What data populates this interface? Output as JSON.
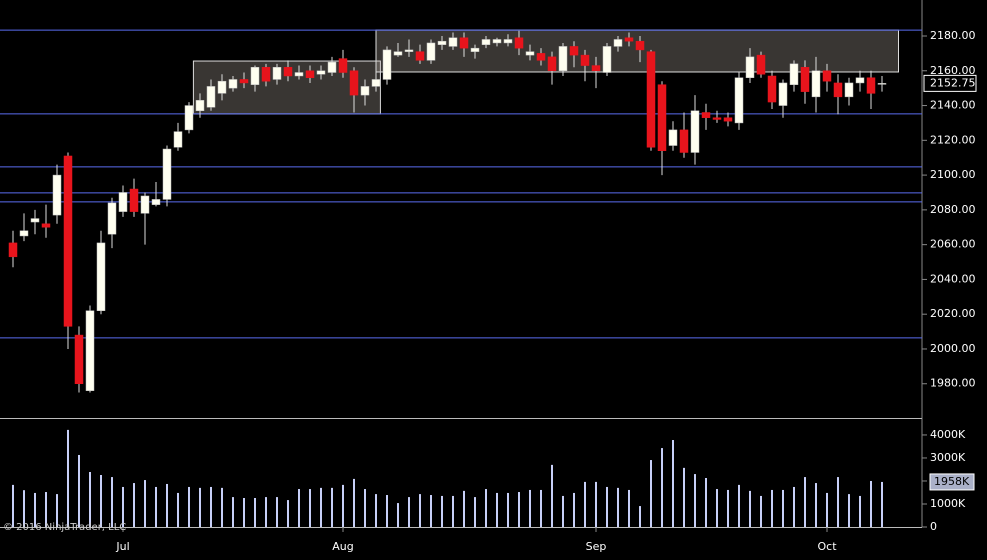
{
  "chart_data": {
    "type": "candlestick",
    "watermark": "© 2016 NinjaTrader, LLC",
    "categories": [
      null,
      null,
      null,
      null,
      null,
      null,
      null,
      null,
      null,
      null,
      "Jul",
      null,
      null,
      null,
      null,
      null,
      null,
      null,
      null,
      null,
      null,
      null,
      null,
      null,
      null,
      null,
      null,
      null,
      null,
      null,
      "Aug",
      null,
      null,
      null,
      null,
      null,
      null,
      null,
      null,
      null,
      null,
      null,
      null,
      null,
      null,
      null,
      null,
      null,
      null,
      null,
      null,
      null,
      null,
      "Sep",
      null,
      null,
      null,
      null,
      null,
      null,
      null,
      null,
      null,
      null,
      null,
      null,
      null,
      null,
      null,
      null,
      null,
      null,
      null,
      null,
      "Oct",
      null,
      null,
      null,
      null,
      null
    ],
    "open": [
      2061,
      2065,
      2073,
      2072,
      2077,
      2111,
      2008,
      1976,
      2022,
      2066,
      2079,
      2092,
      2078,
      2083,
      2086,
      2116,
      2126,
      2137,
      2139,
      2147,
      2150,
      2155,
      2152,
      2162,
      2155,
      2162,
      2157,
      2160,
      2158,
      2159,
      2167,
      2160,
      2146,
      2151,
      2155,
      2169,
      2171,
      2171,
      2166,
      2175,
      2174,
      2179,
      2171,
      2175,
      2176,
      2176,
      2179,
      2169,
      2170,
      2168,
      2160,
      2174,
      2169,
      2163,
      2159,
      2174,
      2179,
      2177,
      2171,
      2152,
      2117,
      2126,
      2113,
      2136,
      2133,
      2133,
      2130,
      2156,
      2169,
      2157,
      2140,
      2152,
      2162,
      2145,
      2160,
      2153,
      2145,
      2153,
      2156,
      2152.5
    ],
    "high": [
      2068,
      2078,
      2080,
      2083,
      2106,
      2113,
      2013,
      2025,
      2068,
      2087,
      2094,
      2098,
      2090,
      2096,
      2117,
      2130,
      2142,
      2147,
      2155,
      2158,
      2157,
      2159,
      2163,
      2164,
      2164,
      2166,
      2163,
      2163,
      2163,
      2168,
      2172,
      2162,
      2155,
      2160,
      2174,
      2176,
      2178,
      2175,
      2178,
      2180,
      2182,
      2182,
      2175,
      2180,
      2179,
      2181,
      2183,
      2175,
      2173,
      2171,
      2176,
      2177,
      2172,
      2168,
      2176,
      2180,
      2182,
      2180,
      2172,
      2154,
      2131,
      2136,
      2146,
      2141,
      2137,
      2136,
      2159,
      2173,
      2171,
      2160,
      2155,
      2166,
      2166,
      2168,
      2164,
      2158,
      2156,
      2160,
      2160,
      2157
    ],
    "low": [
      2047,
      2062,
      2066,
      2064,
      2072,
      2000,
      1975,
      1975,
      2020,
      2058,
      2076,
      2076,
      2060,
      2082,
      2082,
      2114,
      2124,
      2133,
      2137,
      2143,
      2148,
      2150,
      2148,
      2151,
      2152,
      2154,
      2155,
      2153,
      2155,
      2157,
      2156,
      2136,
      2140,
      2148,
      2152,
      2168,
      2168,
      2164,
      2164,
      2172,
      2172,
      2168,
      2167,
      2173,
      2174,
      2174,
      2169,
      2166,
      2163,
      2152,
      2157,
      2162,
      2154,
      2150,
      2157,
      2171,
      2174,
      2165,
      2114,
      2100,
      2114,
      2110,
      2106,
      2126,
      2130,
      2128,
      2126,
      2153,
      2156,
      2138,
      2133,
      2148,
      2141,
      2136,
      2148,
      2135,
      2140,
      2148,
      2138,
      2148
    ],
    "close": [
      2053,
      2068,
      2075,
      2070,
      2100,
      2013,
      1980,
      2022,
      2061,
      2084,
      2090,
      2079,
      2088,
      2086,
      2115,
      2125,
      2140,
      2143,
      2151,
      2154,
      2155,
      2153,
      2162,
      2154,
      2162,
      2157,
      2159,
      2156,
      2160,
      2165,
      2159,
      2146,
      2151,
      2155,
      2172,
      2171,
      2172,
      2166,
      2176,
      2177,
      2179,
      2173,
      2173,
      2178,
      2178,
      2178,
      2173,
      2171,
      2166,
      2160,
      2174,
      2169,
      2163,
      2160,
      2174,
      2178,
      2177,
      2172,
      2116,
      2114,
      2126,
      2113,
      2137,
      2133,
      2132,
      2131,
      2156,
      2168,
      2158,
      2142,
      2153,
      2164,
      2148,
      2160,
      2154,
      2145,
      2153,
      2156,
      2147,
      2152.75
    ],
    "up_color": "#fffff0",
    "down_color": "#e8141c",
    "ylim": [
      1960.3,
      2200.7
    ],
    "yticks": [
      {
        "value": 1980,
        "label": "1980.00"
      },
      {
        "value": 2000,
        "label": "2000.00"
      },
      {
        "value": 2020,
        "label": "2020.00"
      },
      {
        "value": 2040,
        "label": "2040.00"
      },
      {
        "value": 2060,
        "label": "2060.00"
      },
      {
        "value": 2080,
        "label": "2080.00"
      },
      {
        "value": 2100,
        "label": "2100.00"
      },
      {
        "value": 2120,
        "label": "2120.00"
      },
      {
        "value": 2140,
        "label": "2140.00"
      },
      {
        "value": 2160,
        "label": "2160.00"
      },
      {
        "value": 2180,
        "label": "2180.00"
      }
    ],
    "last_price": {
      "value": 2152.75,
      "label": "2152.75"
    },
    "levels": [
      2183.4,
      2135.2,
      2104.7,
      2089.8,
      2084.6,
      2006.4
    ],
    "level_color": "#5a6cf0",
    "zones": [
      {
        "x": [
          16.4,
          33.4
        ],
        "y": [
          2135.2,
          2165.6
        ]
      },
      {
        "x": [
          33,
          80.5
        ],
        "y": [
          2159.3,
          2183.4
        ]
      }
    ],
    "volume": {
      "values": [
        1830000,
        1600000,
        1480000,
        1520000,
        1430000,
        4220000,
        3130000,
        2390000,
        2260000,
        2170000,
        1740000,
        1910000,
        2040000,
        1740000,
        1870000,
        1480000,
        1740000,
        1700000,
        1740000,
        1700000,
        1300000,
        1260000,
        1260000,
        1300000,
        1300000,
        1170000,
        1650000,
        1650000,
        1700000,
        1700000,
        1830000,
        2090000,
        1650000,
        1430000,
        1390000,
        1040000,
        1300000,
        1430000,
        1390000,
        1350000,
        1350000,
        1570000,
        1300000,
        1650000,
        1480000,
        1480000,
        1520000,
        1610000,
        1610000,
        2700000,
        1350000,
        1480000,
        1960000,
        1960000,
        1740000,
        1700000,
        1610000,
        910000,
        2910000,
        3430000,
        3780000,
        2570000,
        2300000,
        2130000,
        1650000,
        1610000,
        1830000,
        1570000,
        1350000,
        1610000,
        1610000,
        1740000,
        2170000,
        1910000,
        1480000,
        2170000,
        1430000,
        1350000,
        2000000,
        1958000
      ],
      "color": "#c8d0f8",
      "ylim": [
        0,
        4650000
      ],
      "yticks": [
        0,
        {
          "value": 1000000,
          "label": "1000K"
        },
        {
          "value": 2000000,
          "label": "2000K"
        },
        {
          "value": 3000000,
          "label": "3000K"
        },
        {
          "value": 4000000,
          "label": "4000K"
        }
      ],
      "last": {
        "value": 1958000,
        "label": "1958K"
      }
    }
  }
}
